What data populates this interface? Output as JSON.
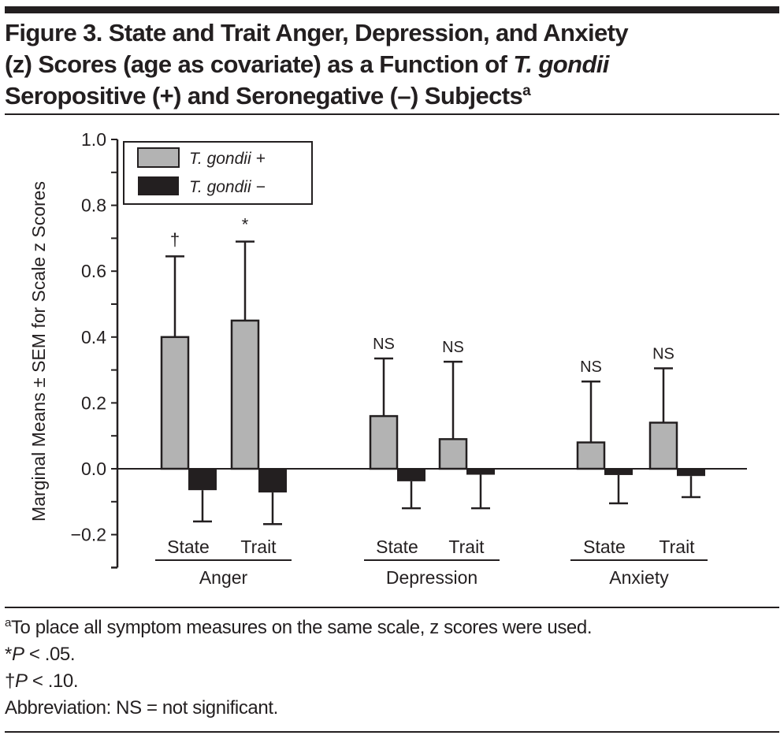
{
  "figure": {
    "title_parts": {
      "line1": "Figure 3. State and Trait Anger, Depression, and Anxiety",
      "line2_a": "(z) Scores (age as covariate) as a Function of ",
      "line2_italic": "T. gondii",
      "line3_a": "Seropositive (+) and Seronegative (–) Subjects",
      "line3_sup": "a"
    },
    "notes": {
      "note_a_sup": "a",
      "note_a": "To place all symptom measures on the same scale, z scores were used.",
      "note_star_sym": "*",
      "note_star_p": "P",
      "note_star_rest": " < .05.",
      "note_dagger_sym": "†",
      "note_dagger_p": "P",
      "note_dagger_rest": " < .10.",
      "abbreviation": "Abbreviation: NS = not significant."
    }
  },
  "chart_data": {
    "type": "bar",
    "title": "State and Trait Anger, Depression, and Anxiety (z) Scores (age as covariate) as a Function of T. gondii Seropositive (+) and Seronegative (–) Subjects",
    "xlabel": "",
    "ylabel": "Marginal Means ± SEM for Scale z Scores",
    "ylim": [
      -0.3,
      1.0
    ],
    "yticks": [
      -0.2,
      0.0,
      0.2,
      0.4,
      0.6,
      0.8,
      1.0
    ],
    "ytick_labels": [
      "−0.2",
      "0.0",
      "0.2",
      "0.4",
      "0.6",
      "0.8",
      "1.0"
    ],
    "grid": false,
    "legend_position": "top-left",
    "groups": [
      "Anger",
      "Depression",
      "Anxiety"
    ],
    "subcategories": [
      "State",
      "Trait"
    ],
    "categories": [
      "Anger State",
      "Anger Trait",
      "Depression State",
      "Depression Trait",
      "Anxiety State",
      "Anxiety Trait"
    ],
    "series": [
      {
        "name": "T. gondii +",
        "color": "#b3b3b3",
        "values": [
          0.4,
          0.45,
          0.16,
          0.09,
          0.08,
          0.14
        ],
        "error_upper": [
          0.645,
          0.69,
          0.335,
          0.325,
          0.265,
          0.305
        ]
      },
      {
        "name": "T. gondii −",
        "color": "#231f20",
        "values": [
          -0.065,
          -0.072,
          -0.038,
          -0.018,
          -0.019,
          -0.022
        ],
        "error_lower": [
          -0.16,
          -0.168,
          -0.12,
          -0.12,
          -0.105,
          -0.086
        ]
      }
    ],
    "annotations": [
      "†",
      "*",
      "NS",
      "NS",
      "NS",
      "NS"
    ]
  }
}
